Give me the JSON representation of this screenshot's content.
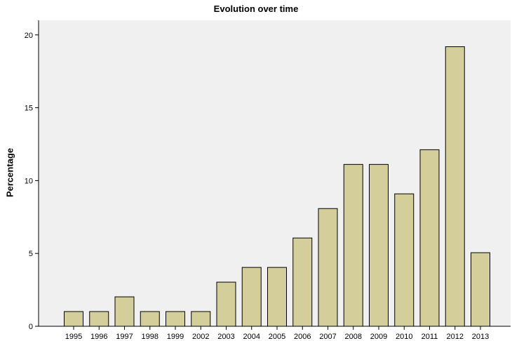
{
  "chart_data": {
    "type": "bar",
    "title": "Evolution over time",
    "xlabel": "",
    "ylabel": "Percentage",
    "categories": [
      "1995",
      "1996",
      "1997",
      "1998",
      "1999",
      "2002",
      "2003",
      "2004",
      "2005",
      "2006",
      "2007",
      "2008",
      "2009",
      "2010",
      "2011",
      "2012",
      "2013"
    ],
    "values": [
      1.01,
      1.01,
      2.02,
      1.01,
      1.01,
      1.01,
      3.03,
      4.04,
      4.04,
      6.06,
      8.08,
      11.11,
      11.11,
      9.09,
      12.12,
      19.19,
      5.05
    ],
    "ylim": [
      0,
      21
    ],
    "yticks": [
      0,
      5,
      10,
      15,
      20
    ],
    "grid": false,
    "colors": {
      "plot_background": "#f0f0f0",
      "bar_fill": "#d4cf9a",
      "bar_stroke": "#000000"
    }
  }
}
